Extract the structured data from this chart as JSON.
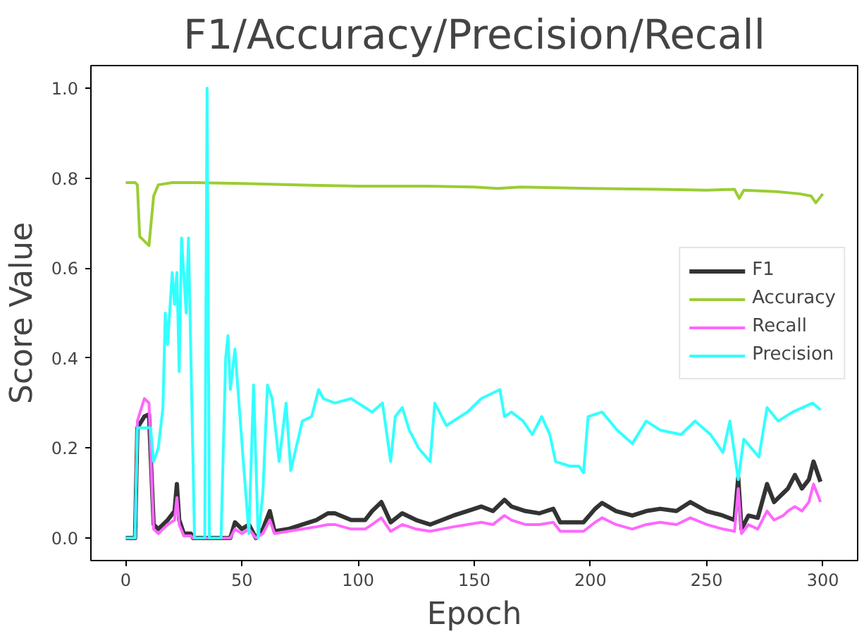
{
  "chart_data": {
    "type": "line",
    "title": "F1/Accuracy/Precision/Recall",
    "xlabel": "Epoch",
    "ylabel": "Score Value",
    "xlim": [
      -15,
      315
    ],
    "ylim": [
      -0.05,
      1.05
    ],
    "xticks": [
      0,
      50,
      100,
      150,
      200,
      250,
      300
    ],
    "yticks": [
      {
        "value": 0,
        "label": "0.0"
      },
      {
        "value": 0.2,
        "label": "0.2"
      },
      {
        "value": 0.4,
        "label": "0.4"
      },
      {
        "value": 0.6,
        "label": "0.6"
      },
      {
        "value": 0.8,
        "label": "0.8"
      },
      {
        "value": 1,
        "label": "1.0"
      }
    ],
    "grid": false,
    "legend": "right",
    "series": [
      {
        "name": "F1",
        "color": "#333333",
        "x": [
          0,
          4,
          5,
          8,
          10,
          11,
          12,
          14,
          18,
          21,
          22,
          23,
          25,
          28,
          29,
          45,
          47,
          50,
          53,
          56,
          59,
          62,
          64,
          70,
          76,
          82,
          87,
          90,
          97,
          103,
          106,
          110,
          114,
          119,
          125,
          131,
          141,
          147,
          153,
          158,
          163,
          166,
          172,
          178,
          184,
          187,
          192,
          197,
          202,
          205,
          211,
          218,
          224,
          230,
          237,
          243,
          250,
          257,
          262,
          263.6,
          265,
          268,
          272,
          276,
          279,
          283,
          285,
          288,
          291,
          294,
          296,
          299
        ],
        "values": [
          0,
          0,
          0.245,
          0.27,
          0.275,
          0.15,
          0.03,
          0.02,
          0.04,
          0.06,
          0.12,
          0.04,
          0.01,
          0.01,
          0,
          0,
          0.035,
          0.02,
          0.03,
          0,
          0.02,
          0.06,
          0.015,
          0.02,
          0.03,
          0.04,
          0.055,
          0.055,
          0.04,
          0.04,
          0.06,
          0.08,
          0.035,
          0.055,
          0.04,
          0.03,
          0.05,
          0.06,
          0.07,
          0.06,
          0.085,
          0.07,
          0.06,
          0.055,
          0.065,
          0.035,
          0.035,
          0.035,
          0.065,
          0.078,
          0.06,
          0.05,
          0.06,
          0.065,
          0.06,
          0.08,
          0.06,
          0.05,
          0.04,
          0.135,
          0.02,
          0.05,
          0.045,
          0.12,
          0.08,
          0.1,
          0.11,
          0.14,
          0.11,
          0.13,
          0.17,
          0.125
        ]
      },
      {
        "name": "Accuracy",
        "color": "#9acd32",
        "x": [
          0,
          4,
          5,
          6,
          8,
          10,
          12,
          14,
          20,
          30,
          50,
          80,
          100,
          130,
          150,
          160,
          170,
          200,
          230,
          250,
          262,
          264,
          266,
          280,
          290,
          295,
          297,
          300
        ],
        "values": [
          0.79,
          0.79,
          0.785,
          0.67,
          0.66,
          0.65,
          0.76,
          0.785,
          0.79,
          0.79,
          0.788,
          0.784,
          0.782,
          0.782,
          0.78,
          0.777,
          0.78,
          0.777,
          0.775,
          0.773,
          0.775,
          0.755,
          0.773,
          0.77,
          0.765,
          0.76,
          0.745,
          0.765
        ]
      },
      {
        "name": "Recall",
        "color": "#ff66ff",
        "x": [
          0,
          4,
          5,
          8,
          10,
          11,
          12,
          14,
          18,
          21,
          22,
          23,
          25,
          28,
          29,
          45,
          47,
          50,
          53,
          56,
          59,
          62,
          64,
          70,
          76,
          82,
          87,
          90,
          97,
          103,
          106,
          110,
          114,
          119,
          125,
          131,
          141,
          147,
          153,
          158,
          163,
          166,
          172,
          178,
          184,
          187,
          192,
          197,
          202,
          205,
          211,
          218,
          224,
          230,
          237,
          243,
          250,
          257,
          262,
          263.6,
          265,
          268,
          272,
          276,
          279,
          283,
          285,
          288,
          291,
          294,
          296,
          299
        ],
        "values": [
          0,
          0,
          0.26,
          0.31,
          0.3,
          0.15,
          0.02,
          0.01,
          0.03,
          0.04,
          0.09,
          0.03,
          0.005,
          0.005,
          0,
          0,
          0.02,
          0.01,
          0.02,
          0,
          0.01,
          0.04,
          0.01,
          0.015,
          0.02,
          0.025,
          0.03,
          0.03,
          0.02,
          0.02,
          0.03,
          0.045,
          0.015,
          0.03,
          0.02,
          0.015,
          0.025,
          0.03,
          0.035,
          0.03,
          0.05,
          0.04,
          0.03,
          0.03,
          0.035,
          0.015,
          0.015,
          0.015,
          0.035,
          0.045,
          0.03,
          0.02,
          0.03,
          0.035,
          0.03,
          0.045,
          0.03,
          0.02,
          0.015,
          0.11,
          0.01,
          0.03,
          0.02,
          0.06,
          0.04,
          0.05,
          0.06,
          0.07,
          0.06,
          0.08,
          0.12,
          0.08
        ]
      },
      {
        "name": "Precision",
        "color": "#33ffff",
        "x": [
          0,
          4,
          5,
          10.7,
          12,
          14,
          16,
          17,
          18,
          20,
          21,
          22,
          23,
          24,
          26,
          27,
          29.6,
          34,
          35,
          36,
          41,
          43,
          44,
          45,
          47,
          50.6,
          53,
          55,
          57,
          59,
          61,
          63,
          66,
          69,
          71,
          76,
          80,
          83,
          85,
          90,
          97,
          103,
          106,
          110.5,
          114,
          116,
          119,
          122,
          126,
          131,
          133,
          138,
          147,
          153,
          161,
          163,
          166,
          171,
          175,
          179,
          182.5,
          185,
          191,
          195,
          197,
          199,
          205,
          211.5,
          218,
          224,
          230,
          239,
          245,
          251.7,
          257,
          260,
          263.6,
          266,
          272.5,
          276,
          280.8,
          287,
          295.6,
          299
        ],
        "values": [
          0,
          0,
          0.245,
          0.245,
          0.17,
          0.2,
          0.29,
          0.5,
          0.43,
          0.59,
          0.52,
          0.59,
          0.37,
          0.667,
          0.5,
          0.667,
          0,
          0,
          1,
          0,
          0,
          0.4,
          0.45,
          0.33,
          0.42,
          0.17,
          0.01,
          0.34,
          0,
          0.1,
          0.34,
          0.31,
          0.17,
          0.3,
          0.15,
          0.26,
          0.27,
          0.33,
          0.31,
          0.3,
          0.31,
          0.29,
          0.28,
          0.3,
          0.17,
          0.27,
          0.29,
          0.24,
          0.2,
          0.17,
          0.3,
          0.25,
          0.28,
          0.31,
          0.33,
          0.27,
          0.28,
          0.26,
          0.23,
          0.27,
          0.23,
          0.17,
          0.16,
          0.16,
          0.145,
          0.27,
          0.28,
          0.24,
          0.21,
          0.26,
          0.24,
          0.23,
          0.26,
          0.23,
          0.19,
          0.26,
          0.13,
          0.22,
          0.18,
          0.29,
          0.26,
          0.28,
          0.3,
          0.285
        ]
      }
    ]
  }
}
